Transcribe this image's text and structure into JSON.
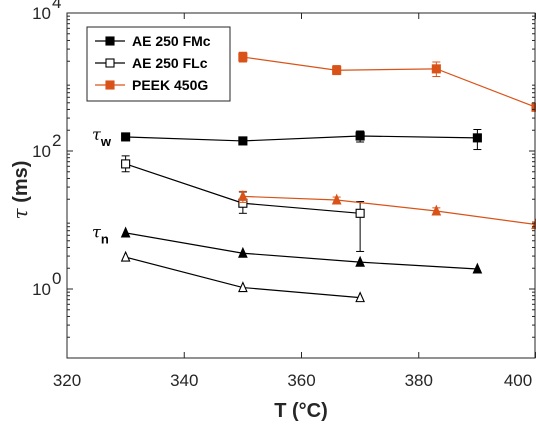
{
  "chart_data": {
    "type": "line",
    "xlabel": "T (°C)",
    "ylabel": "τ (ms)",
    "ylabel_symbol": "τ",
    "ylabel_unit": " (ms)",
    "xlim": [
      320,
      400
    ],
    "ylim": [
      0.1,
      10000
    ],
    "yscale": "log",
    "grid": false,
    "legend_position": "top-left",
    "x_ticks": [
      320,
      340,
      360,
      380,
      400
    ],
    "x_tick_labels": [
      "320",
      "340",
      "360",
      "380",
      "400"
    ],
    "y_ticks": [
      1,
      100,
      10000
    ],
    "y_tick_labels": [
      {
        "base": "10",
        "exp": "0"
      },
      {
        "base": "10",
        "exp": "2"
      },
      {
        "base": "10",
        "exp": "4"
      }
    ],
    "series": [
      {
        "name": "AE 250 FMc",
        "color": "#000000",
        "marker": "filled-square",
        "x": [
          330,
          350,
          370,
          390
        ],
        "y": [
          160,
          140,
          165,
          155
        ],
        "err_low": [
          0,
          15,
          30,
          50
        ],
        "err_high": [
          0,
          15,
          30,
          50
        ]
      },
      {
        "name": "AE 250 FLc",
        "color": "#000000",
        "marker": "open-square",
        "x": [
          330,
          350,
          370
        ],
        "y": [
          65,
          17.5,
          12.5
        ],
        "err_low": [
          15,
          5,
          9
        ],
        "err_high": [
          20,
          8,
          6
        ]
      },
      {
        "name": "PEEK 450G",
        "color": "#D95319",
        "marker": "filled-square",
        "x": [
          350,
          366,
          383,
          400
        ],
        "y": [
          2300,
          1480,
          1550,
          430
        ],
        "err_low": [
          350,
          200,
          350,
          30
        ],
        "err_high": [
          400,
          250,
          400,
          30
        ]
      },
      {
        "color": "#000000",
        "marker": "filled-triangle",
        "x": [
          330,
          350,
          370,
          390
        ],
        "y": [
          6.5,
          3.3,
          2.45,
          1.95
        ],
        "err_low": [
          0,
          0,
          0,
          0
        ],
        "err_high": [
          0,
          0,
          0,
          0
        ]
      },
      {
        "color": "#D95319",
        "marker": "filled-triangle",
        "x": [
          350,
          366,
          383,
          400
        ],
        "y": [
          22,
          19.5,
          13.5,
          8.6
        ],
        "err_low": [
          4,
          2,
          1.5,
          0.8
        ],
        "err_high": [
          4,
          2,
          1.5,
          0.8
        ]
      },
      {
        "color": "#000000",
        "marker": "open-triangle",
        "x": [
          330,
          350,
          370
        ],
        "y": [
          2.9,
          1.05,
          0.75
        ],
        "err_low": [
          0,
          0,
          0
        ],
        "err_high": [
          0,
          0,
          0
        ]
      }
    ],
    "annotations": [
      {
        "symbol": "τ",
        "subscript": "w",
        "x": 327,
        "y": 160
      },
      {
        "symbol": "τ",
        "subscript": "n",
        "x": 327,
        "y": 6.2
      }
    ]
  }
}
